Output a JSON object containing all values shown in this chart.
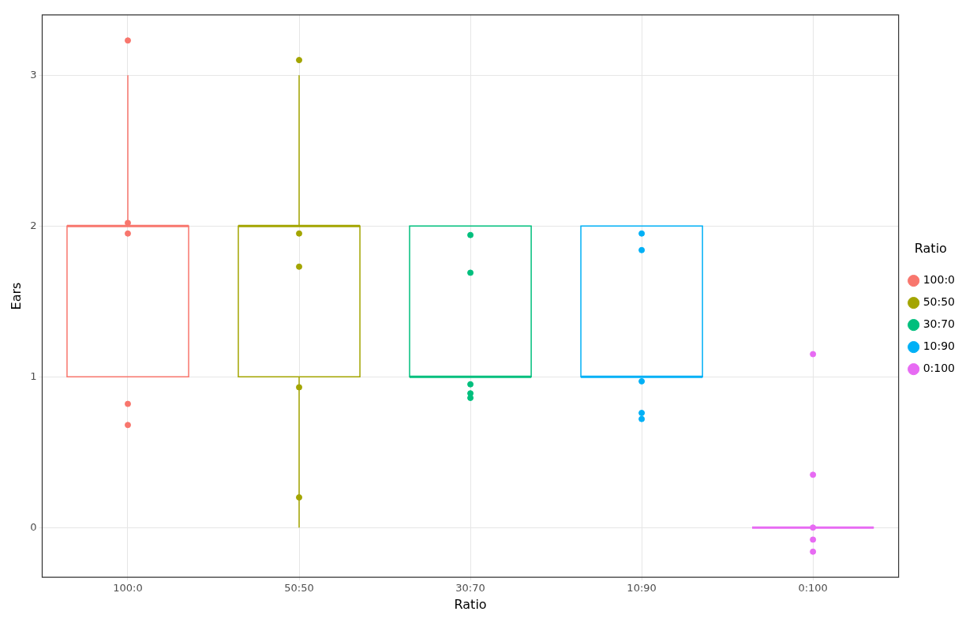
{
  "chart_data": {
    "type": "box",
    "xlabel": "Ratio",
    "ylabel": "Ears",
    "legend_title": "Ratio",
    "legend": "right",
    "grid": true,
    "marker": "circle",
    "categories": [
      "100:0",
      "50:50",
      "30:70",
      "10:90",
      "0:100"
    ],
    "colors": [
      "#f8766d",
      "#a3a500",
      "#00bf7d",
      "#00b0f6",
      "#e76bf3"
    ],
    "boxes": [
      {
        "low": 1,
        "q1": 1,
        "median": 2,
        "q3": 2,
        "high": 3
      },
      {
        "low": 0,
        "q1": 1,
        "median": 2,
        "q3": 2,
        "high": 3
      },
      {
        "low": 1,
        "q1": 1,
        "median": 1,
        "q3": 2,
        "high": 2
      },
      {
        "low": 1,
        "q1": 1,
        "median": 1,
        "q3": 2,
        "high": 2
      },
      {
        "low": 0,
        "q1": 0,
        "median": 0,
        "q3": 0,
        "high": 0
      }
    ],
    "series": [
      {
        "type": "scatter",
        "name": "100:0",
        "color": "#f8766d",
        "x": [
          "100:0",
          "100:0",
          "100:0",
          "100:0",
          "100:0"
        ],
        "values": [
          3.23,
          2.02,
          1.95,
          0.82,
          0.68
        ]
      },
      {
        "type": "scatter",
        "name": "50:50",
        "color": "#a3a500",
        "x": [
          "50:50",
          "50:50",
          "50:50",
          "50:50",
          "50:50"
        ],
        "values": [
          3.1,
          1.95,
          1.73,
          0.93,
          0.2
        ]
      },
      {
        "type": "scatter",
        "name": "30:70",
        "color": "#00bf7d",
        "x": [
          "30:70",
          "30:70",
          "30:70",
          "30:70",
          "30:70"
        ],
        "values": [
          1.94,
          1.69,
          0.95,
          0.89,
          0.86
        ]
      },
      {
        "type": "scatter",
        "name": "10:90",
        "color": "#00b0f6",
        "x": [
          "10:90",
          "10:90",
          "10:90",
          "10:90",
          "10:90"
        ],
        "values": [
          1.95,
          1.84,
          0.97,
          0.76,
          0.72
        ]
      },
      {
        "type": "scatter",
        "name": "0:100",
        "color": "#e76bf3",
        "x": [
          "0:100",
          "0:100",
          "0:100",
          "0:100",
          "0:100"
        ],
        "values": [
          1.15,
          0.35,
          0,
          -0.08,
          -0.16
        ]
      }
    ],
    "ylim": [
      -0.33,
      3.4
    ],
    "yticks": [
      0,
      1,
      2,
      3
    ]
  }
}
